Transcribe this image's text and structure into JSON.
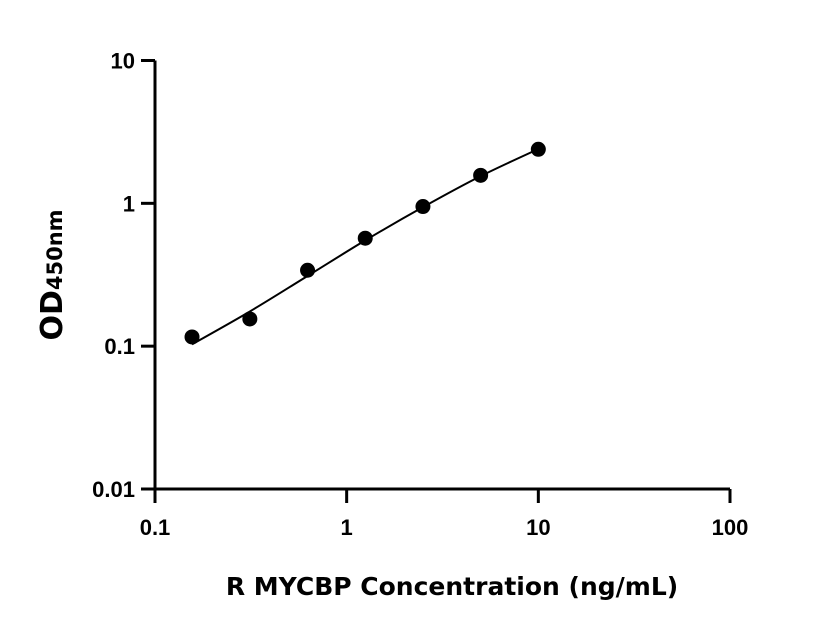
{
  "chart_data": {
    "type": "scatter",
    "title": "",
    "xlabel": "R MYCBP Concentration (ng/mL)",
    "ylabel_main": "OD",
    "ylabel_sub": "450nm",
    "xscale": "log",
    "yscale": "log",
    "xlim": [
      0.1,
      100
    ],
    "ylim": [
      0.01,
      10
    ],
    "xticks": [
      0.1,
      1,
      10,
      100
    ],
    "xtick_labels": [
      "0.1",
      "1",
      "10",
      "100"
    ],
    "yticks": [
      0.01,
      0.1,
      1,
      10
    ],
    "ytick_labels": [
      "0.01",
      "0.1",
      "1",
      "10"
    ],
    "grid": false,
    "colors": {
      "points": "#000000",
      "line": "#000000"
    },
    "series": [
      {
        "type": "scatter",
        "x": [
          0.156,
          0.3125,
          0.625,
          1.25,
          2.5,
          5,
          10
        ],
        "y": [
          0.116,
          0.155,
          0.34,
          0.57,
          0.95,
          1.57,
          2.39
        ]
      },
      {
        "type": "line",
        "x": [
          0.156,
          0.3125,
          0.625,
          1.25,
          2.5,
          5,
          10
        ],
        "y": [
          0.103,
          0.175,
          0.31,
          0.55,
          0.94,
          1.55,
          2.4
        ]
      }
    ]
  }
}
